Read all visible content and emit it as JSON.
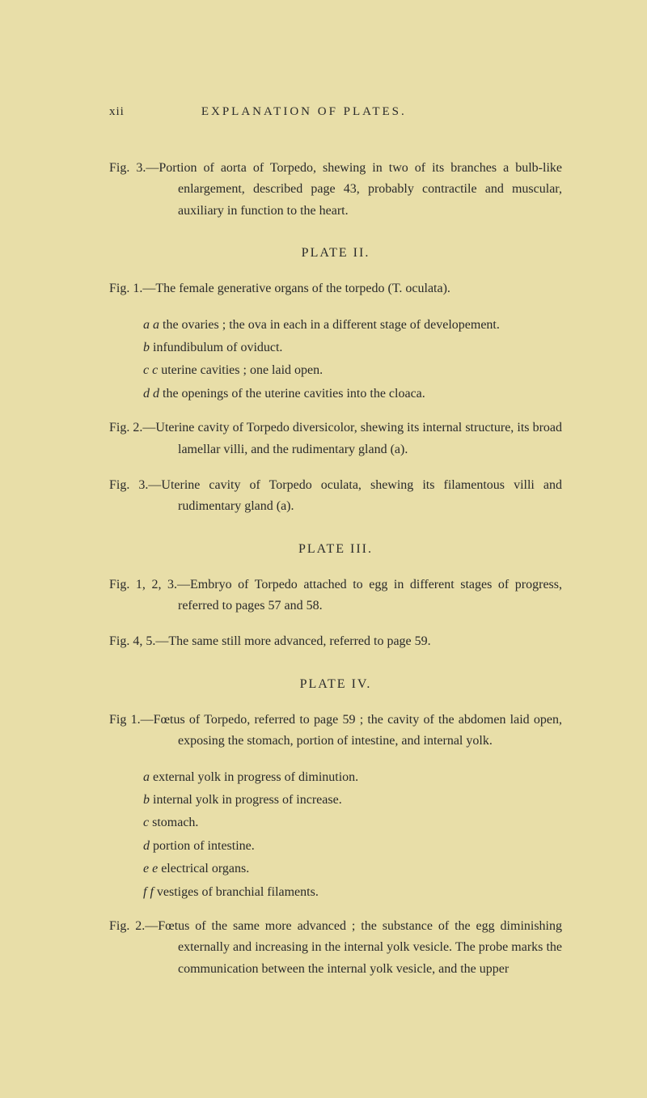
{
  "page": {
    "number": "xii",
    "runningHead": "EXPLANATION OF PLATES."
  },
  "colors": {
    "background": "#e8dea8",
    "text": "#2a2a2a"
  },
  "typography": {
    "bodyFontSize": 16,
    "headerFontSize": 15,
    "lineHeight": 1.65,
    "fontFamily": "Georgia, Times New Roman, serif"
  },
  "entries": [
    {
      "type": "fig",
      "label": "Fig. 3.—",
      "text": "Portion of aorta of Torpedo, shewing in two of its branches a bulb-like enlargement, described page 43, probably contractile and muscular, auxiliary in function to the heart."
    },
    {
      "type": "plate",
      "text": "PLATE II."
    },
    {
      "type": "fig",
      "label": "Fig. 1.—",
      "text": "The female generative organs of the torpedo (T. oculata)."
    },
    {
      "type": "subgroup",
      "items": [
        {
          "marker": "a a",
          "text": "the ovaries ; the ova in each in a different stage of developement."
        },
        {
          "marker": "b",
          "text": "infundibulum of oviduct."
        },
        {
          "marker": "c c",
          "text": "uterine cavities ; one laid open."
        },
        {
          "marker": "d d",
          "text": "the openings of the uterine cavities into the cloaca."
        }
      ]
    },
    {
      "type": "fig",
      "label": "Fig. 2.—",
      "text": "Uterine cavity of Torpedo diversicolor, shewing its internal structure, its broad lamellar villi, and the rudimentary gland (a)."
    },
    {
      "type": "fig",
      "label": "Fig. 3.—",
      "text": "Uterine cavity of Torpedo oculata, shewing its filamentous villi and rudimentary gland (a)."
    },
    {
      "type": "plate",
      "text": "PLATE III."
    },
    {
      "type": "fig",
      "label": "Fig. 1, 2, 3.—",
      "text": "Embryo of Torpedo attached to egg in different stages of progress, referred to pages 57 and 58."
    },
    {
      "type": "fig",
      "label": "Fig. 4, 5.—",
      "text": "The same still more advanced, referred to page 59."
    },
    {
      "type": "plate",
      "text": "PLATE IV."
    },
    {
      "type": "fig",
      "label": "Fig 1.—",
      "text": "Fœtus of Torpedo, referred to page 59 ; the cavity of the abdomen laid open, exposing the stomach, portion of intestine, and internal yolk."
    },
    {
      "type": "subgroup",
      "items": [
        {
          "marker": "a",
          "text": "external yolk in progress of diminution."
        },
        {
          "marker": "b",
          "text": "internal yolk in progress of increase."
        },
        {
          "marker": "c",
          "text": "stomach."
        },
        {
          "marker": "d",
          "text": "portion of intestine."
        },
        {
          "marker": "e e",
          "text": "electrical organs."
        },
        {
          "marker": "f f",
          "text": "vestiges of branchial filaments."
        }
      ]
    },
    {
      "type": "fig",
      "label": "Fig. 2.—",
      "text": "Fœtus of the same more advanced ; the substance of the egg diminishing externally and increasing in the internal yolk vesicle. The probe marks the communication between the internal yolk vesicle, and the upper"
    }
  ]
}
